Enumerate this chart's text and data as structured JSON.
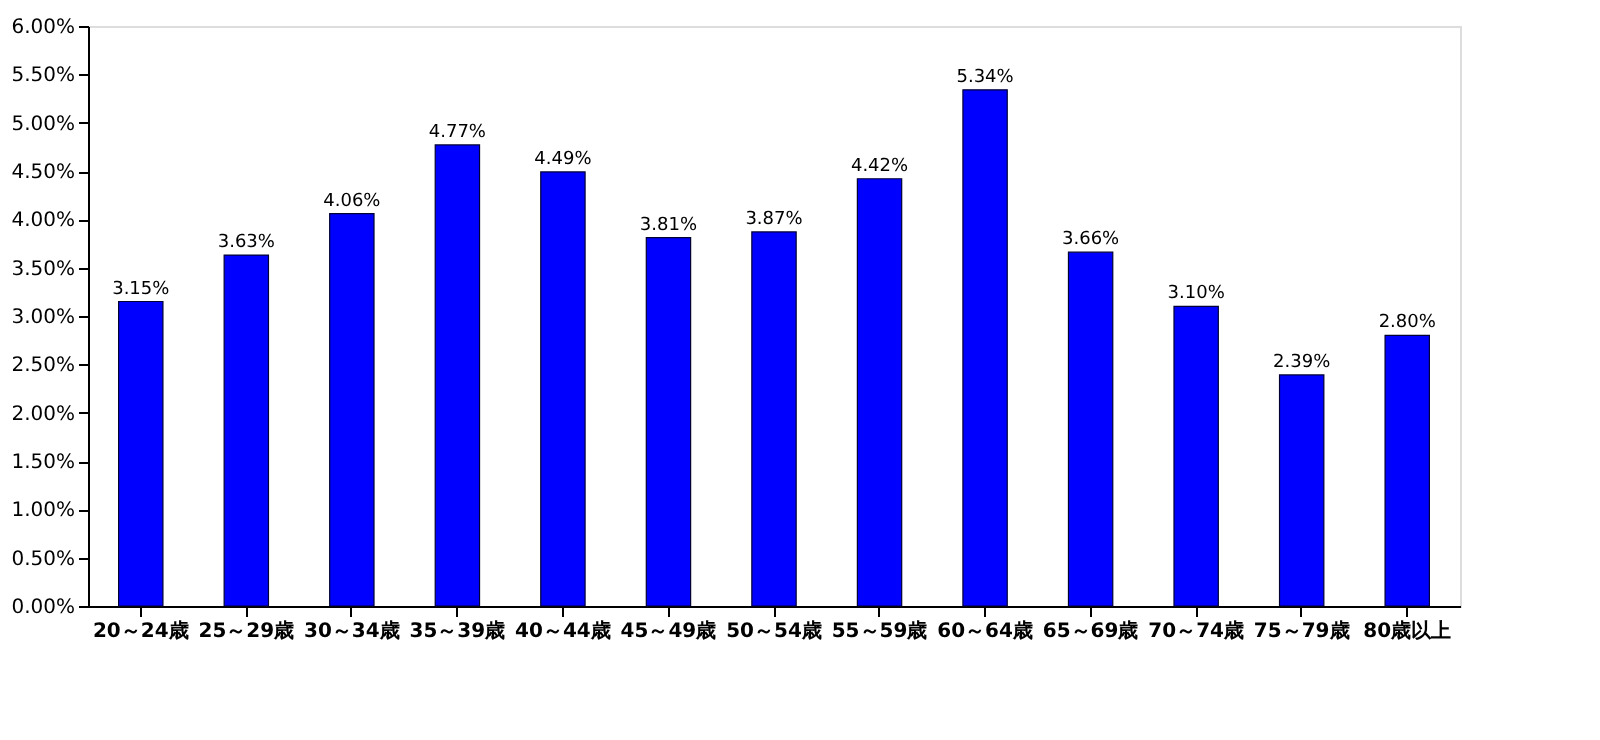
{
  "chart_data": {
    "type": "bar",
    "categories": [
      "20～24歳",
      "25～29歳",
      "30～34歳",
      "35～39歳",
      "40～44歳",
      "45～49歳",
      "50～54歳",
      "55～59歳",
      "60～64歳",
      "65～69歳",
      "70～74歳",
      "75～79歳",
      "80歳以上"
    ],
    "values": [
      3.15,
      3.63,
      4.06,
      4.77,
      4.49,
      3.81,
      3.87,
      4.42,
      5.34,
      3.66,
      3.1,
      2.39,
      2.8
    ],
    "value_labels": [
      "3.15%",
      "3.63%",
      "4.06%",
      "4.77%",
      "4.49%",
      "3.81%",
      "3.87%",
      "4.42%",
      "5.34%",
      "3.66%",
      "3.10%",
      "2.39%",
      "2.80%"
    ],
    "color": "#0000ff",
    "ylim": [
      0,
      6
    ],
    "yticks": [
      {
        "value": 0,
        "label": "0.00%"
      },
      {
        "value": 0.5,
        "label": "0.50%"
      },
      {
        "value": 1,
        "label": "1.00%"
      },
      {
        "value": 1.5,
        "label": "1.50%"
      },
      {
        "value": 2,
        "label": "2.00%"
      },
      {
        "value": 2.5,
        "label": "2.50%"
      },
      {
        "value": 3,
        "label": "3.00%"
      },
      {
        "value": 3.5,
        "label": "3.50%"
      },
      {
        "value": 4,
        "label": "4.00%"
      },
      {
        "value": 4.5,
        "label": "4.50%"
      },
      {
        "value": 5,
        "label": "5.00%"
      },
      {
        "value": 5.5,
        "label": "5.50%"
      },
      {
        "value": 6,
        "label": "6.00%"
      }
    ],
    "grid": false
  }
}
